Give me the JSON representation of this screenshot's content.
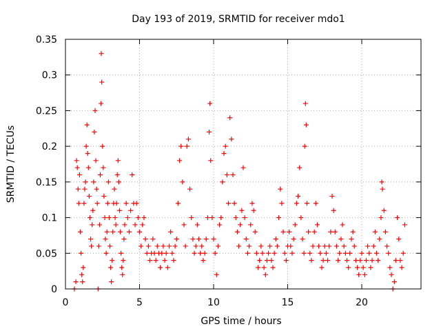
{
  "chart_data": {
    "type": "scatter",
    "title": "Day 193 of 2019, SRMTID for receiver mdo1",
    "xlabel": "GPS time / hours",
    "ylabel": "SRMTID / TECUs",
    "xlim": [
      0,
      24
    ],
    "ylim": [
      0,
      0.35
    ],
    "xticks": [
      0,
      5,
      10,
      15,
      20
    ],
    "xtick_labels": [
      "0",
      "5",
      "10",
      "15",
      "20"
    ],
    "yticks": [
      0,
      0.05,
      0.1,
      0.15,
      0.2,
      0.25,
      0.3,
      0.35
    ],
    "ytick_labels": [
      "0",
      "0.05",
      "0.1",
      "0.15",
      "0.2",
      "0.25",
      "0.3",
      "0.35"
    ],
    "grid": true,
    "marker": "+",
    "color": "#ff0000",
    "series": [
      {
        "name": "SRMTID",
        "points": [
          [
            0.6,
            0.0
          ],
          [
            0.7,
            0.01
          ],
          [
            0.75,
            0.18
          ],
          [
            0.8,
            0.17
          ],
          [
            0.85,
            0.14
          ],
          [
            0.9,
            0.12
          ],
          [
            0.95,
            0.16
          ],
          [
            1.0,
            0.08
          ],
          [
            1.05,
            0.05
          ],
          [
            1.1,
            0.02
          ],
          [
            1.15,
            0.01
          ],
          [
            1.2,
            0.03
          ],
          [
            1.25,
            0.12
          ],
          [
            1.3,
            0.14
          ],
          [
            1.35,
            0.15
          ],
          [
            1.4,
            0.2
          ],
          [
            1.45,
            0.23
          ],
          [
            1.5,
            0.19
          ],
          [
            1.55,
            0.17
          ],
          [
            1.6,
            0.13
          ],
          [
            1.65,
            0.1
          ],
          [
            1.7,
            0.07
          ],
          [
            1.75,
            0.06
          ],
          [
            1.8,
            0.09
          ],
          [
            1.85,
            0.11
          ],
          [
            1.9,
            0.15
          ],
          [
            1.95,
            0.22
          ],
          [
            2.0,
            0.25
          ],
          [
            2.05,
            0.18
          ],
          [
            2.1,
            0.14
          ],
          [
            2.15,
            0.12
          ],
          [
            2.2,
            0.0
          ],
          [
            2.25,
            0.06
          ],
          [
            2.3,
            0.09
          ],
          [
            2.35,
            0.16
          ],
          [
            2.4,
            0.26
          ],
          [
            2.42,
            0.33
          ],
          [
            2.45,
            0.29
          ],
          [
            2.5,
            0.2
          ],
          [
            2.55,
            0.17
          ],
          [
            2.6,
            0.13
          ],
          [
            2.65,
            0.1
          ],
          [
            2.7,
            0.07
          ],
          [
            2.75,
            0.05
          ],
          [
            2.8,
            0.08
          ],
          [
            2.85,
            0.12
          ],
          [
            2.9,
            0.15
          ],
          [
            2.95,
            0.1
          ],
          [
            3.0,
            0.06
          ],
          [
            3.05,
            0.03
          ],
          [
            3.1,
            0.01
          ],
          [
            3.15,
            0.04
          ],
          [
            3.2,
            0.08
          ],
          [
            3.25,
            0.12
          ],
          [
            3.3,
            0.14
          ],
          [
            3.35,
            0.1
          ],
          [
            3.4,
            0.09
          ],
          [
            3.45,
            0.12
          ],
          [
            3.5,
            0.16
          ],
          [
            3.55,
            0.18
          ],
          [
            3.6,
            0.15
          ],
          [
            3.65,
            0.11
          ],
          [
            3.7,
            0.08
          ],
          [
            3.75,
            0.05
          ],
          [
            3.8,
            0.03
          ],
          [
            3.85,
            0.02
          ],
          [
            3.9,
            0.04
          ],
          [
            3.95,
            0.07
          ],
          [
            4.0,
            0.09
          ],
          [
            4.1,
            0.12
          ],
          [
            4.2,
            0.1
          ],
          [
            4.3,
            0.08
          ],
          [
            4.4,
            0.11
          ],
          [
            4.5,
            0.16
          ],
          [
            4.6,
            0.12
          ],
          [
            4.7,
            0.09
          ],
          [
            4.8,
            0.12
          ],
          [
            4.9,
            0.1
          ],
          [
            5.0,
            0.08
          ],
          [
            5.1,
            0.06
          ],
          [
            5.2,
            0.09
          ],
          [
            5.3,
            0.1
          ],
          [
            5.4,
            0.07
          ],
          [
            5.5,
            0.05
          ],
          [
            5.6,
            0.06
          ],
          [
            5.7,
            0.04
          ],
          [
            5.8,
            0.05
          ],
          [
            5.9,
            0.07
          ],
          [
            6.0,
            0.05
          ],
          [
            6.1,
            0.04
          ],
          [
            6.2,
            0.06
          ],
          [
            6.3,
            0.05
          ],
          [
            6.4,
            0.03
          ],
          [
            6.5,
            0.05
          ],
          [
            6.6,
            0.06
          ],
          [
            6.7,
            0.04
          ],
          [
            6.8,
            0.05
          ],
          [
            6.9,
            0.03
          ],
          [
            7.0,
            0.06
          ],
          [
            7.1,
            0.08
          ],
          [
            7.2,
            0.05
          ],
          [
            7.3,
            0.04
          ],
          [
            7.4,
            0.06
          ],
          [
            7.5,
            0.07
          ],
          [
            7.6,
            0.12
          ],
          [
            7.7,
            0.18
          ],
          [
            7.8,
            0.2
          ],
          [
            7.9,
            0.15
          ],
          [
            8.0,
            0.09
          ],
          [
            8.1,
            0.06
          ],
          [
            8.2,
            0.2
          ],
          [
            8.3,
            0.21
          ],
          [
            8.4,
            0.14
          ],
          [
            8.5,
            0.1
          ],
          [
            8.6,
            0.07
          ],
          [
            8.7,
            0.05
          ],
          [
            8.8,
            0.06
          ],
          [
            8.9,
            0.09
          ],
          [
            9.0,
            0.07
          ],
          [
            9.1,
            0.05
          ],
          [
            9.2,
            0.06
          ],
          [
            9.3,
            0.04
          ],
          [
            9.4,
            0.05
          ],
          [
            9.5,
            0.07
          ],
          [
            9.6,
            0.1
          ],
          [
            9.7,
            0.22
          ],
          [
            9.75,
            0.26
          ],
          [
            9.8,
            0.18
          ],
          [
            9.9,
            0.1
          ],
          [
            10.0,
            0.07
          ],
          [
            10.1,
            0.05
          ],
          [
            10.2,
            0.02
          ],
          [
            10.3,
            0.06
          ],
          [
            10.4,
            0.09
          ],
          [
            10.5,
            0.1
          ],
          [
            10.6,
            0.15
          ],
          [
            10.7,
            0.19
          ],
          [
            10.8,
            0.2
          ],
          [
            10.9,
            0.16
          ],
          [
            11.0,
            0.12
          ],
          [
            11.1,
            0.24
          ],
          [
            11.2,
            0.21
          ],
          [
            11.3,
            0.16
          ],
          [
            11.4,
            0.12
          ],
          [
            11.5,
            0.1
          ],
          [
            11.6,
            0.08
          ],
          [
            11.7,
            0.06
          ],
          [
            11.8,
            0.09
          ],
          [
            11.9,
            0.11
          ],
          [
            12.0,
            0.17
          ],
          [
            12.1,
            0.1
          ],
          [
            12.2,
            0.07
          ],
          [
            12.3,
            0.05
          ],
          [
            12.4,
            0.06
          ],
          [
            12.5,
            0.09
          ],
          [
            12.6,
            0.12
          ],
          [
            12.7,
            0.11
          ],
          [
            12.8,
            0.08
          ],
          [
            12.9,
            0.05
          ],
          [
            13.0,
            0.03
          ],
          [
            13.1,
            0.04
          ],
          [
            13.2,
            0.06
          ],
          [
            13.3,
            0.05
          ],
          [
            13.4,
            0.03
          ],
          [
            13.5,
            0.02
          ],
          [
            13.6,
            0.04
          ],
          [
            13.7,
            0.05
          ],
          [
            13.8,
            0.06
          ],
          [
            13.9,
            0.04
          ],
          [
            14.0,
            0.03
          ],
          [
            14.1,
            0.05
          ],
          [
            14.2,
            0.07
          ],
          [
            14.3,
            0.06
          ],
          [
            14.4,
            0.1
          ],
          [
            14.5,
            0.14
          ],
          [
            14.6,
            0.12
          ],
          [
            14.7,
            0.08
          ],
          [
            14.8,
            0.05
          ],
          [
            14.9,
            0.04
          ],
          [
            15.0,
            0.06
          ],
          [
            15.1,
            0.08
          ],
          [
            15.2,
            0.06
          ],
          [
            15.3,
            0.05
          ],
          [
            15.4,
            0.07
          ],
          [
            15.5,
            0.09
          ],
          [
            15.6,
            0.12
          ],
          [
            15.7,
            0.13
          ],
          [
            15.8,
            0.17
          ],
          [
            15.9,
            0.1
          ],
          [
            16.0,
            0.07
          ],
          [
            16.1,
            0.05
          ],
          [
            16.15,
            0.2
          ],
          [
            16.2,
            0.26
          ],
          [
            16.25,
            0.23
          ],
          [
            16.3,
            0.12
          ],
          [
            16.4,
            0.08
          ],
          [
            16.5,
            0.05
          ],
          [
            16.6,
            0.04
          ],
          [
            16.7,
            0.06
          ],
          [
            16.8,
            0.08
          ],
          [
            16.9,
            0.12
          ],
          [
            17.0,
            0.09
          ],
          [
            17.1,
            0.06
          ],
          [
            17.2,
            0.05
          ],
          [
            17.3,
            0.03
          ],
          [
            17.4,
            0.04
          ],
          [
            17.5,
            0.06
          ],
          [
            17.6,
            0.05
          ],
          [
            17.7,
            0.04
          ],
          [
            17.8,
            0.06
          ],
          [
            17.9,
            0.08
          ],
          [
            18.0,
            0.13
          ],
          [
            18.1,
            0.11
          ],
          [
            18.2,
            0.08
          ],
          [
            18.3,
            0.06
          ],
          [
            18.4,
            0.04
          ],
          [
            18.5,
            0.05
          ],
          [
            18.6,
            0.07
          ],
          [
            18.7,
            0.09
          ],
          [
            18.8,
            0.06
          ],
          [
            18.9,
            0.05
          ],
          [
            19.0,
            0.04
          ],
          [
            19.1,
            0.03
          ],
          [
            19.2,
            0.05
          ],
          [
            19.3,
            0.07
          ],
          [
            19.4,
            0.08
          ],
          [
            19.5,
            0.06
          ],
          [
            19.6,
            0.04
          ],
          [
            19.7,
            0.03
          ],
          [
            19.8,
            0.02
          ],
          [
            19.9,
            0.04
          ],
          [
            20.0,
            0.05
          ],
          [
            20.1,
            0.03
          ],
          [
            20.2,
            0.02
          ],
          [
            20.3,
            0.04
          ],
          [
            20.4,
            0.06
          ],
          [
            20.5,
            0.05
          ],
          [
            20.6,
            0.03
          ],
          [
            20.7,
            0.04
          ],
          [
            20.8,
            0.06
          ],
          [
            20.9,
            0.08
          ],
          [
            21.0,
            0.05
          ],
          [
            21.1,
            0.04
          ],
          [
            21.2,
            0.07
          ],
          [
            21.3,
            0.1
          ],
          [
            21.35,
            0.15
          ],
          [
            21.4,
            0.14
          ],
          [
            21.5,
            0.11
          ],
          [
            21.6,
            0.08
          ],
          [
            21.7,
            0.06
          ],
          [
            21.8,
            0.05
          ],
          [
            21.9,
            0.03
          ],
          [
            22.0,
            0.02
          ],
          [
            22.1,
            0.0
          ],
          [
            22.2,
            0.01
          ],
          [
            22.3,
            0.04
          ],
          [
            22.4,
            0.1
          ],
          [
            22.5,
            0.07
          ],
          [
            22.6,
            0.04
          ],
          [
            22.7,
            0.03
          ],
          [
            22.8,
            0.05
          ],
          [
            22.9,
            0.09
          ]
        ]
      }
    ]
  }
}
